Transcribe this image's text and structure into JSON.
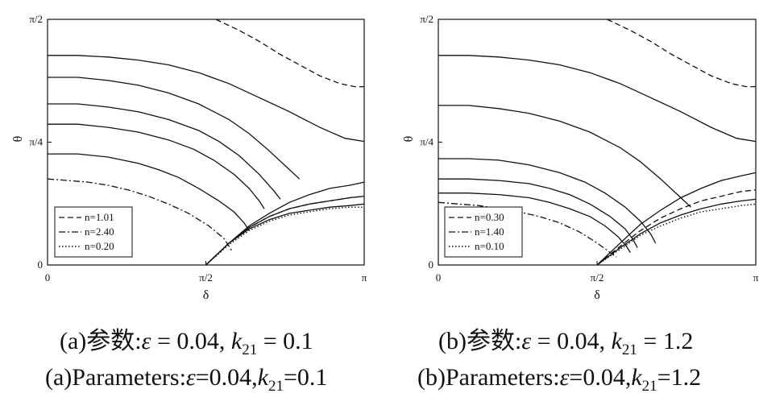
{
  "captions": {
    "a_cn": "(a)参数:ε = 0.04, k21 = 0.1",
    "a_cn_parts": {
      "prefix": "(a)参数:",
      "eps": "ε",
      "eps_val": " = 0.04, ",
      "k": "k",
      "k_sub": "21",
      "k_val": " = 0.1"
    },
    "a_en_parts": {
      "prefix": "(a)Parameters:",
      "eps": "ε",
      "eps_val": "=0.04,",
      "k": "k",
      "k_sub": "21",
      "k_val": "=0.1"
    },
    "b_cn_parts": {
      "prefix": "(b)参数:",
      "eps": "ε",
      "eps_val": " = 0.04, ",
      "k": "k",
      "k_sub": "21",
      "k_val": " = 1.2"
    },
    "b_en_parts": {
      "prefix": "(b)Parameters:",
      "eps": "ε",
      "eps_val": "=0.04,",
      "k": "k",
      "k_sub": "21",
      "k_val": "=1.2"
    }
  },
  "chart_data": [
    {
      "type": "line",
      "xlabel": "δ",
      "ylabel": "θ",
      "xlim": [
        0,
        3.1416
      ],
      "ylim": [
        0,
        1.5708
      ],
      "xticks": [
        {
          "v": 0,
          "label": "0"
        },
        {
          "v": 1.5708,
          "label": "π/2"
        },
        {
          "v": 3.1416,
          "label": "π"
        }
      ],
      "yticks": [
        {
          "v": 0,
          "label": "0"
        },
        {
          "v": 0.7854,
          "label": "π/4"
        },
        {
          "v": 1.5708,
          "label": "π/2"
        }
      ],
      "legend_position": "bottom-left",
      "legend": [
        {
          "label": "n=1.01",
          "style": "dashed"
        },
        {
          "label": "n=2.40",
          "style": "dashdot"
        },
        {
          "label": "n=0.20",
          "style": "dotted"
        }
      ],
      "series": [
        {
          "style": "dashed",
          "x": [
            1.67,
            1.9,
            2.1,
            2.3,
            2.5,
            2.7,
            2.9,
            3.05,
            3.1416
          ],
          "y": [
            1.5708,
            1.5,
            1.43,
            1.35,
            1.28,
            1.21,
            1.16,
            1.14,
            1.14
          ]
        },
        {
          "style": "solid",
          "x": [
            0,
            0.3,
            0.6,
            0.9,
            1.2,
            1.5,
            1.8,
            2.1,
            2.4,
            2.7,
            2.95,
            3.1416
          ],
          "y": [
            1.34,
            1.34,
            1.33,
            1.31,
            1.28,
            1.23,
            1.16,
            1.07,
            0.98,
            0.88,
            0.81,
            0.79
          ]
        },
        {
          "style": "solid",
          "x": [
            0,
            0.3,
            0.6,
            0.9,
            1.2,
            1.5,
            1.8,
            2.0,
            2.2,
            2.4,
            2.5
          ],
          "y": [
            1.2,
            1.2,
            1.18,
            1.15,
            1.1,
            1.03,
            0.93,
            0.84,
            0.73,
            0.61,
            0.55
          ]
        },
        {
          "style": "solid",
          "x": [
            0,
            0.3,
            0.6,
            0.9,
            1.2,
            1.5,
            1.7,
            1.9,
            2.1,
            2.25,
            2.31
          ],
          "y": [
            1.03,
            1.03,
            1.01,
            0.98,
            0.93,
            0.86,
            0.79,
            0.7,
            0.58,
            0.47,
            0.42
          ]
        },
        {
          "style": "solid",
          "x": [
            0,
            0.3,
            0.6,
            0.9,
            1.2,
            1.45,
            1.65,
            1.85,
            2.0,
            2.1,
            2.15
          ],
          "y": [
            0.9,
            0.9,
            0.88,
            0.85,
            0.8,
            0.74,
            0.67,
            0.58,
            0.49,
            0.41,
            0.36
          ]
        },
        {
          "style": "solid",
          "x": [
            0,
            0.3,
            0.6,
            0.9,
            1.1,
            1.3,
            1.5,
            1.7,
            1.85,
            1.95,
            2.0
          ],
          "y": [
            0.71,
            0.71,
            0.69,
            0.65,
            0.61,
            0.56,
            0.49,
            0.41,
            0.34,
            0.27,
            0.22
          ]
        },
        {
          "style": "dashdot",
          "x": [
            0,
            0.2,
            0.4,
            0.6,
            0.8,
            1.0,
            1.2,
            1.4,
            1.6,
            1.75,
            1.83
          ],
          "y": [
            0.55,
            0.54,
            0.53,
            0.51,
            0.48,
            0.44,
            0.39,
            0.33,
            0.25,
            0.17,
            0.09
          ]
        },
        {
          "style": "solid",
          "x": [
            1.5708,
            1.8,
            2.0,
            2.2,
            2.4,
            2.6,
            2.8,
            3.0,
            3.1416
          ],
          "y": [
            0,
            0.14,
            0.25,
            0.33,
            0.4,
            0.45,
            0.49,
            0.51,
            0.53
          ]
        },
        {
          "style": "solid",
          "x": [
            1.5708,
            1.8,
            2.0,
            2.2,
            2.4,
            2.6,
            2.8,
            3.0,
            3.1416
          ],
          "y": [
            0,
            0.14,
            0.24,
            0.31,
            0.36,
            0.39,
            0.41,
            0.43,
            0.44
          ]
        },
        {
          "style": "dashed",
          "x": [
            1.5708,
            1.8,
            2.0,
            2.2,
            2.4,
            2.6,
            2.8,
            3.0,
            3.1416
          ],
          "y": [
            0,
            0.14,
            0.24,
            0.31,
            0.36,
            0.39,
            0.41,
            0.43,
            0.44
          ]
        },
        {
          "style": "solid",
          "x": [
            1.5708,
            1.8,
            2.0,
            2.2,
            2.4,
            2.6,
            2.8,
            3.0,
            3.1416
          ],
          "y": [
            0,
            0.14,
            0.23,
            0.29,
            0.33,
            0.35,
            0.37,
            0.38,
            0.39
          ]
        },
        {
          "style": "dotted",
          "x": [
            1.5708,
            1.8,
            2.0,
            2.2,
            2.4,
            2.6,
            2.8,
            3.0,
            3.1416
          ],
          "y": [
            0,
            0.13,
            0.22,
            0.28,
            0.32,
            0.34,
            0.36,
            0.37,
            0.37
          ]
        }
      ]
    },
    {
      "type": "line",
      "xlabel": "δ",
      "ylabel": "θ",
      "xlim": [
        0,
        3.1416
      ],
      "ylim": [
        0,
        1.5708
      ],
      "xticks": [
        {
          "v": 0,
          "label": "0"
        },
        {
          "v": 1.5708,
          "label": "π/2"
        },
        {
          "v": 3.1416,
          "label": "π"
        }
      ],
      "yticks": [
        {
          "v": 0,
          "label": "0"
        },
        {
          "v": 0.7854,
          "label": "π/4"
        },
        {
          "v": 1.5708,
          "label": "π/2"
        }
      ],
      "legend_position": "bottom-left",
      "legend": [
        {
          "label": "n=0.30",
          "style": "dashed"
        },
        {
          "label": "n=1.40",
          "style": "dashdot"
        },
        {
          "label": "n=0.10",
          "style": "dotted"
        }
      ],
      "series": [
        {
          "style": "dashed",
          "x": [
            1.67,
            1.9,
            2.1,
            2.3,
            2.5,
            2.7,
            2.9,
            3.05,
            3.1416
          ],
          "y": [
            1.5708,
            1.5,
            1.43,
            1.35,
            1.28,
            1.21,
            1.16,
            1.14,
            1.14
          ]
        },
        {
          "style": "solid",
          "x": [
            0,
            0.3,
            0.6,
            0.9,
            1.2,
            1.5,
            1.8,
            2.1,
            2.4,
            2.7,
            2.95,
            3.1416
          ],
          "y": [
            1.34,
            1.34,
            1.33,
            1.31,
            1.28,
            1.23,
            1.16,
            1.07,
            0.98,
            0.88,
            0.81,
            0.79
          ]
        },
        {
          "style": "solid",
          "x": [
            0,
            0.3,
            0.6,
            0.9,
            1.2,
            1.5,
            1.8,
            2.0,
            2.2,
            2.4,
            2.5
          ],
          "y": [
            1.02,
            1.02,
            1.0,
            0.97,
            0.92,
            0.85,
            0.75,
            0.66,
            0.55,
            0.43,
            0.37
          ]
        },
        {
          "style": "solid",
          "x": [
            0,
            0.3,
            0.6,
            0.9,
            1.2,
            1.45,
            1.65,
            1.85,
            2.0,
            2.1,
            2.15
          ],
          "y": [
            0.68,
            0.68,
            0.67,
            0.64,
            0.59,
            0.53,
            0.46,
            0.37,
            0.28,
            0.2,
            0.14
          ]
        },
        {
          "style": "solid",
          "x": [
            0,
            0.3,
            0.6,
            0.9,
            1.1,
            1.3,
            1.5,
            1.7,
            1.85,
            1.93,
            1.97
          ],
          "y": [
            0.55,
            0.55,
            0.54,
            0.52,
            0.49,
            0.45,
            0.39,
            0.31,
            0.23,
            0.16,
            0.11
          ]
        },
        {
          "style": "solid",
          "x": [
            0,
            0.3,
            0.6,
            0.9,
            1.1,
            1.3,
            1.5,
            1.65,
            1.78,
            1.86,
            1.9
          ],
          "y": [
            0.46,
            0.46,
            0.45,
            0.43,
            0.4,
            0.36,
            0.31,
            0.25,
            0.18,
            0.12,
            0.08
          ]
        },
        {
          "style": "dashdot",
          "x": [
            0,
            0.2,
            0.4,
            0.6,
            0.8,
            1.0,
            1.2,
            1.4,
            1.55,
            1.68,
            1.76
          ],
          "y": [
            0.4,
            0.39,
            0.38,
            0.36,
            0.34,
            0.31,
            0.27,
            0.21,
            0.15,
            0.09,
            0.05
          ]
        },
        {
          "style": "solid",
          "x": [
            1.5708,
            1.8,
            2.0,
            2.2,
            2.4,
            2.6,
            2.8,
            3.0,
            3.1416
          ],
          "y": [
            0,
            0.14,
            0.26,
            0.35,
            0.43,
            0.49,
            0.54,
            0.57,
            0.59
          ]
        },
        {
          "style": "dashed",
          "x": [
            1.5708,
            1.8,
            2.0,
            2.2,
            2.4,
            2.6,
            2.8,
            3.0,
            3.1416
          ],
          "y": [
            0,
            0.12,
            0.22,
            0.3,
            0.36,
            0.41,
            0.44,
            0.47,
            0.48
          ]
        },
        {
          "style": "solid",
          "x": [
            1.5708,
            1.8,
            2.0,
            2.2,
            2.4,
            2.6,
            2.8,
            3.0,
            3.1416
          ],
          "y": [
            0,
            0.11,
            0.2,
            0.27,
            0.32,
            0.36,
            0.39,
            0.41,
            0.42
          ]
        },
        {
          "style": "dotted",
          "x": [
            1.5708,
            1.8,
            2.0,
            2.2,
            2.4,
            2.6,
            2.8,
            3.0,
            3.1416
          ],
          "y": [
            0,
            0.1,
            0.19,
            0.25,
            0.3,
            0.34,
            0.36,
            0.38,
            0.39
          ]
        }
      ]
    }
  ]
}
